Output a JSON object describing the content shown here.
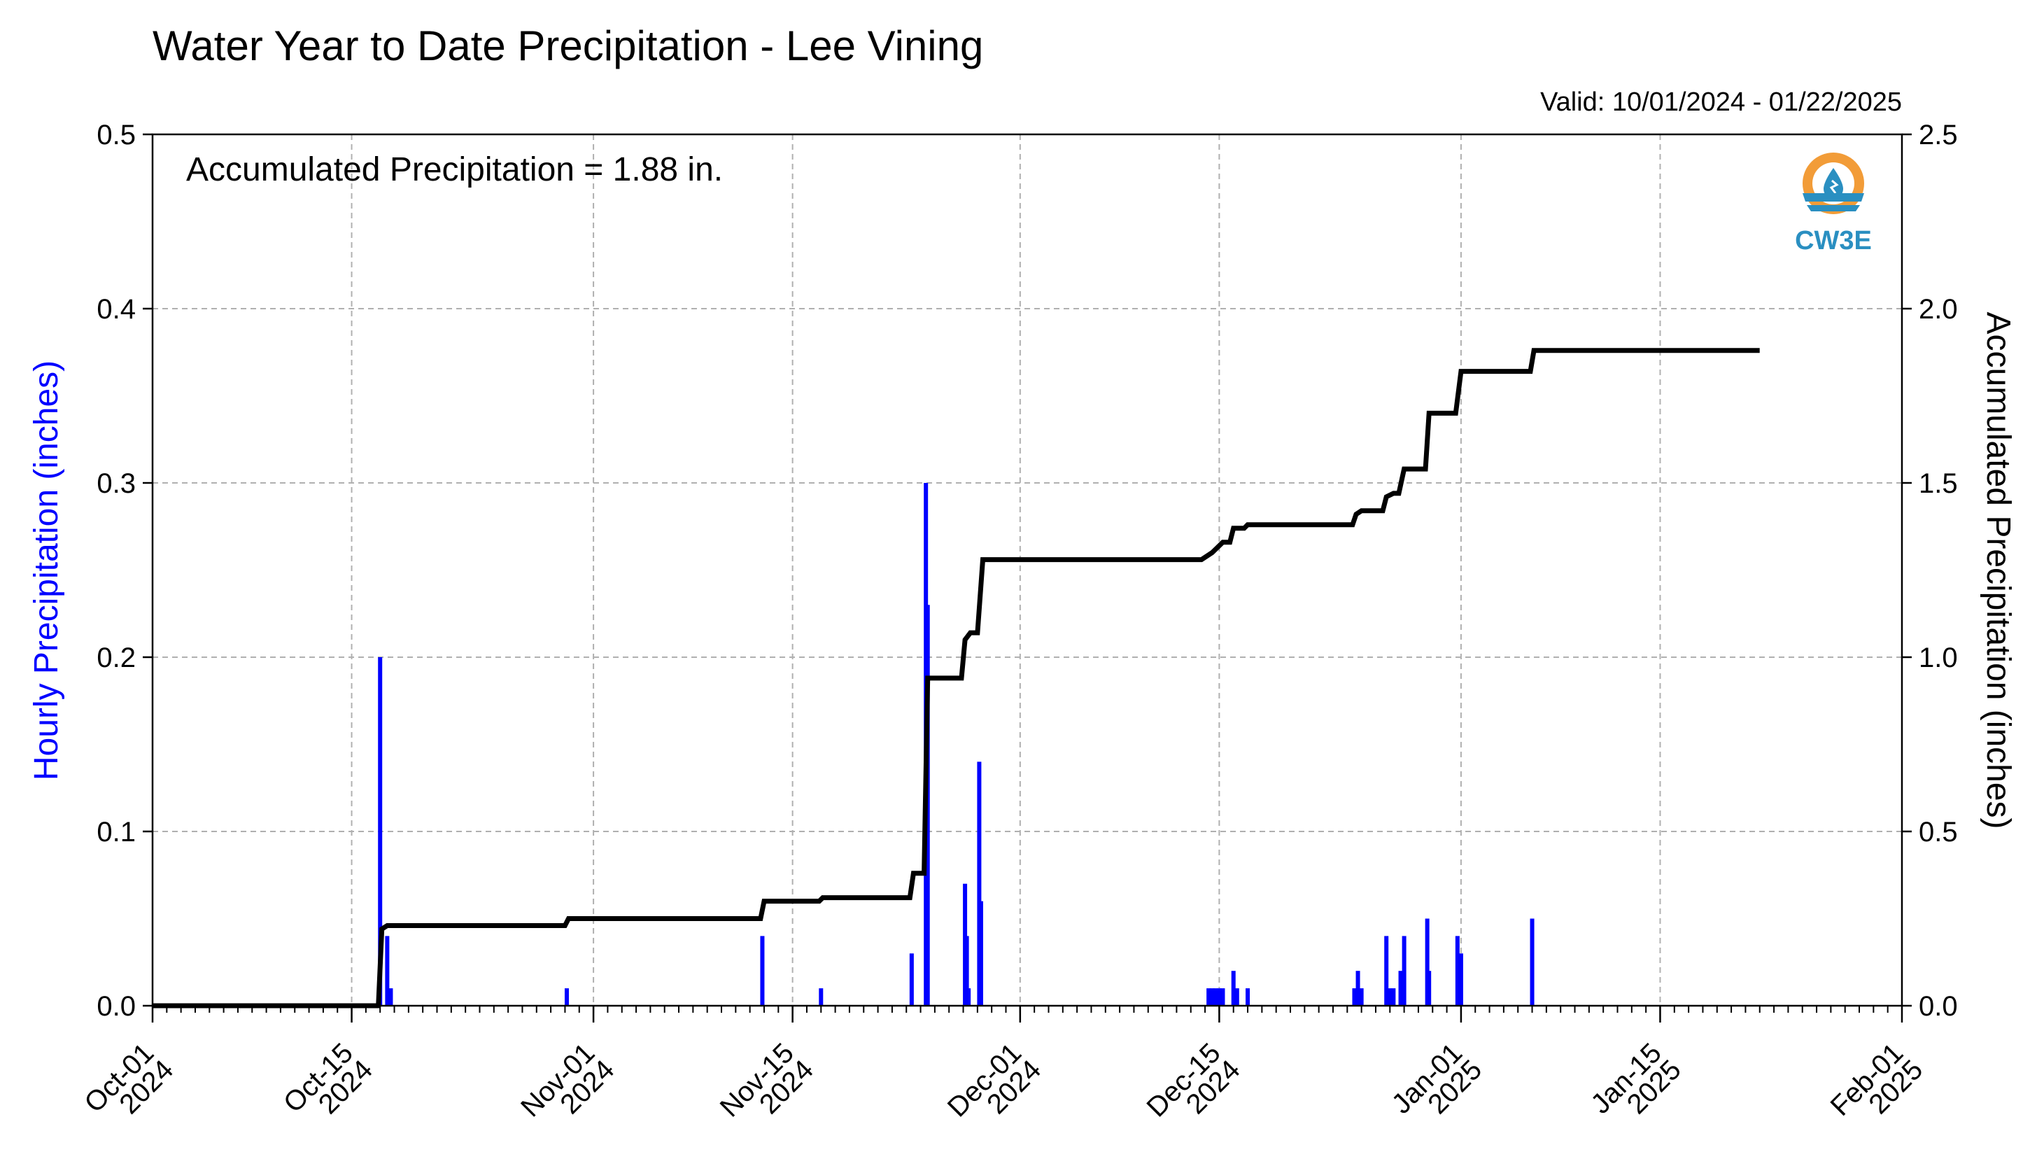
{
  "chart_data": {
    "type": "bar+line",
    "title": "Water Year to Date Precipitation - Lee Vining",
    "valid_text": "Valid: 10/01/2024 - 01/22/2025",
    "annotation": "Accumulated Precipitation = 1.88 in.",
    "logo_text": "CW3E",
    "ylabel_left": "Hourly Precipitation (inches)",
    "ylabel_right": "Accumulated Precipitation (inches)",
    "ylim_left": [
      0,
      0.5
    ],
    "ylim_right": [
      0,
      2.5
    ],
    "yticks_left": [
      "0.0",
      "0.1",
      "0.2",
      "0.3",
      "0.4",
      "0.5"
    ],
    "yticks_right": [
      "0.0",
      "0.5",
      "1.0",
      "1.5",
      "2.0",
      "2.5"
    ],
    "xlim": [
      "2024-10-01",
      "2025-02-01"
    ],
    "xticks": [
      {
        "date": "2024-10-01",
        "label1": "Oct-01",
        "label2": "2024"
      },
      {
        "date": "2024-10-15",
        "label1": "Oct-15",
        "label2": "2024"
      },
      {
        "date": "2024-11-01",
        "label1": "Nov-01",
        "label2": "2024"
      },
      {
        "date": "2024-11-15",
        "label1": "Nov-15",
        "label2": "2024"
      },
      {
        "date": "2024-12-01",
        "label1": "Dec-01",
        "label2": "2024"
      },
      {
        "date": "2024-12-15",
        "label1": "Dec-15",
        "label2": "2024"
      },
      {
        "date": "2025-01-01",
        "label1": "Jan-01",
        "label2": "2025"
      },
      {
        "date": "2025-01-15",
        "label1": "Jan-15",
        "label2": "2025"
      },
      {
        "date": "2025-02-01",
        "label1": "Feb-01",
        "label2": "2025"
      }
    ],
    "grid": true,
    "colors": {
      "hourly": "#0000ff",
      "accumulated": "#000000",
      "grid": "#b0b0b0",
      "logo_orange": "#f29c38",
      "logo_blue": "#2a8fc1"
    },
    "series": [
      {
        "name": "Hourly Precipitation",
        "axis": "left",
        "style": "bar",
        "points": [
          [
            "2024-10-17 00:00",
            0.2
          ],
          [
            "2024-10-17 12:00",
            0.04
          ],
          [
            "2024-10-17 18:00",
            0.01
          ],
          [
            "2024-10-30 03:00",
            0.01
          ],
          [
            "2024-11-12 21:00",
            0.04
          ],
          [
            "2024-11-17 00:00",
            0.01
          ],
          [
            "2024-11-23 09:00",
            0.03
          ],
          [
            "2024-11-24 09:00",
            0.3
          ],
          [
            "2024-11-24 12:00",
            0.23
          ],
          [
            "2024-11-27 03:00",
            0.07
          ],
          [
            "2024-11-27 06:00",
            0.04
          ],
          [
            "2024-11-27 09:00",
            0.01
          ],
          [
            "2024-11-28 03:00",
            0.14
          ],
          [
            "2024-11-28 06:00",
            0.06
          ],
          [
            "2024-12-14 06:00",
            0.01
          ],
          [
            "2024-12-14 12:00",
            0.01
          ],
          [
            "2024-12-14 18:00",
            0.01
          ],
          [
            "2024-12-15 00:00",
            0.01
          ],
          [
            "2024-12-15 06:00",
            0.01
          ],
          [
            "2024-12-16 00:00",
            0.02
          ],
          [
            "2024-12-16 06:00",
            0.01
          ],
          [
            "2024-12-17 00:00",
            0.01
          ],
          [
            "2024-12-24 12:00",
            0.01
          ],
          [
            "2024-12-24 18:00",
            0.02
          ],
          [
            "2024-12-25 00:00",
            0.01
          ],
          [
            "2024-12-26 18:00",
            0.04
          ],
          [
            "2024-12-27 00:00",
            0.01
          ],
          [
            "2024-12-27 06:00",
            0.01
          ],
          [
            "2024-12-27 18:00",
            0.02
          ],
          [
            "2024-12-28 00:00",
            0.04
          ],
          [
            "2024-12-29 15:00",
            0.05
          ],
          [
            "2024-12-29 18:00",
            0.02
          ],
          [
            "2024-12-31 18:00",
            0.04
          ],
          [
            "2025-01-01 00:00",
            0.03
          ],
          [
            "2025-01-06 00:00",
            0.05
          ]
        ]
      },
      {
        "name": "Accumulated Precipitation",
        "axis": "right",
        "style": "step-line",
        "points": [
          [
            "2024-10-01 00:00",
            0.0
          ],
          [
            "2024-10-16 21:00",
            0.0
          ],
          [
            "2024-10-17 03:00",
            0.22
          ],
          [
            "2024-10-17 12:00",
            0.23
          ],
          [
            "2024-10-30 00:00",
            0.23
          ],
          [
            "2024-10-30 06:00",
            0.25
          ],
          [
            "2024-11-12 18:00",
            0.25
          ],
          [
            "2024-11-13 00:00",
            0.3
          ],
          [
            "2024-11-16 21:00",
            0.3
          ],
          [
            "2024-11-17 03:00",
            0.31
          ],
          [
            "2024-11-23 06:00",
            0.31
          ],
          [
            "2024-11-23 12:00",
            0.38
          ],
          [
            "2024-11-24 06:00",
            0.38
          ],
          [
            "2024-11-24 12:00",
            0.94
          ],
          [
            "2024-11-26 21:00",
            0.94
          ],
          [
            "2024-11-27 03:00",
            1.05
          ],
          [
            "2024-11-27 12:00",
            1.07
          ],
          [
            "2024-11-28 00:00",
            1.07
          ],
          [
            "2024-11-28 09:00",
            1.28
          ],
          [
            "2024-12-13 18:00",
            1.28
          ],
          [
            "2024-12-14 12:00",
            1.3
          ],
          [
            "2024-12-15 06:00",
            1.33
          ],
          [
            "2024-12-15 18:00",
            1.33
          ],
          [
            "2024-12-16 00:00",
            1.37
          ],
          [
            "2024-12-16 18:00",
            1.37
          ],
          [
            "2024-12-17 00:00",
            1.38
          ],
          [
            "2024-12-24 09:00",
            1.38
          ],
          [
            "2024-12-24 15:00",
            1.41
          ],
          [
            "2024-12-25 00:00",
            1.42
          ],
          [
            "2024-12-26 12:00",
            1.42
          ],
          [
            "2024-12-26 18:00",
            1.46
          ],
          [
            "2024-12-27 06:00",
            1.47
          ],
          [
            "2024-12-27 15:00",
            1.47
          ],
          [
            "2024-12-28 00:00",
            1.54
          ],
          [
            "2024-12-29 12:00",
            1.54
          ],
          [
            "2024-12-29 18:00",
            1.7
          ],
          [
            "2024-12-31 15:00",
            1.7
          ],
          [
            "2025-01-01 00:00",
            1.82
          ],
          [
            "2025-01-05 21:00",
            1.82
          ],
          [
            "2025-01-06 03:00",
            1.88
          ],
          [
            "2025-01-22 00:00",
            1.88
          ]
        ]
      }
    ]
  }
}
